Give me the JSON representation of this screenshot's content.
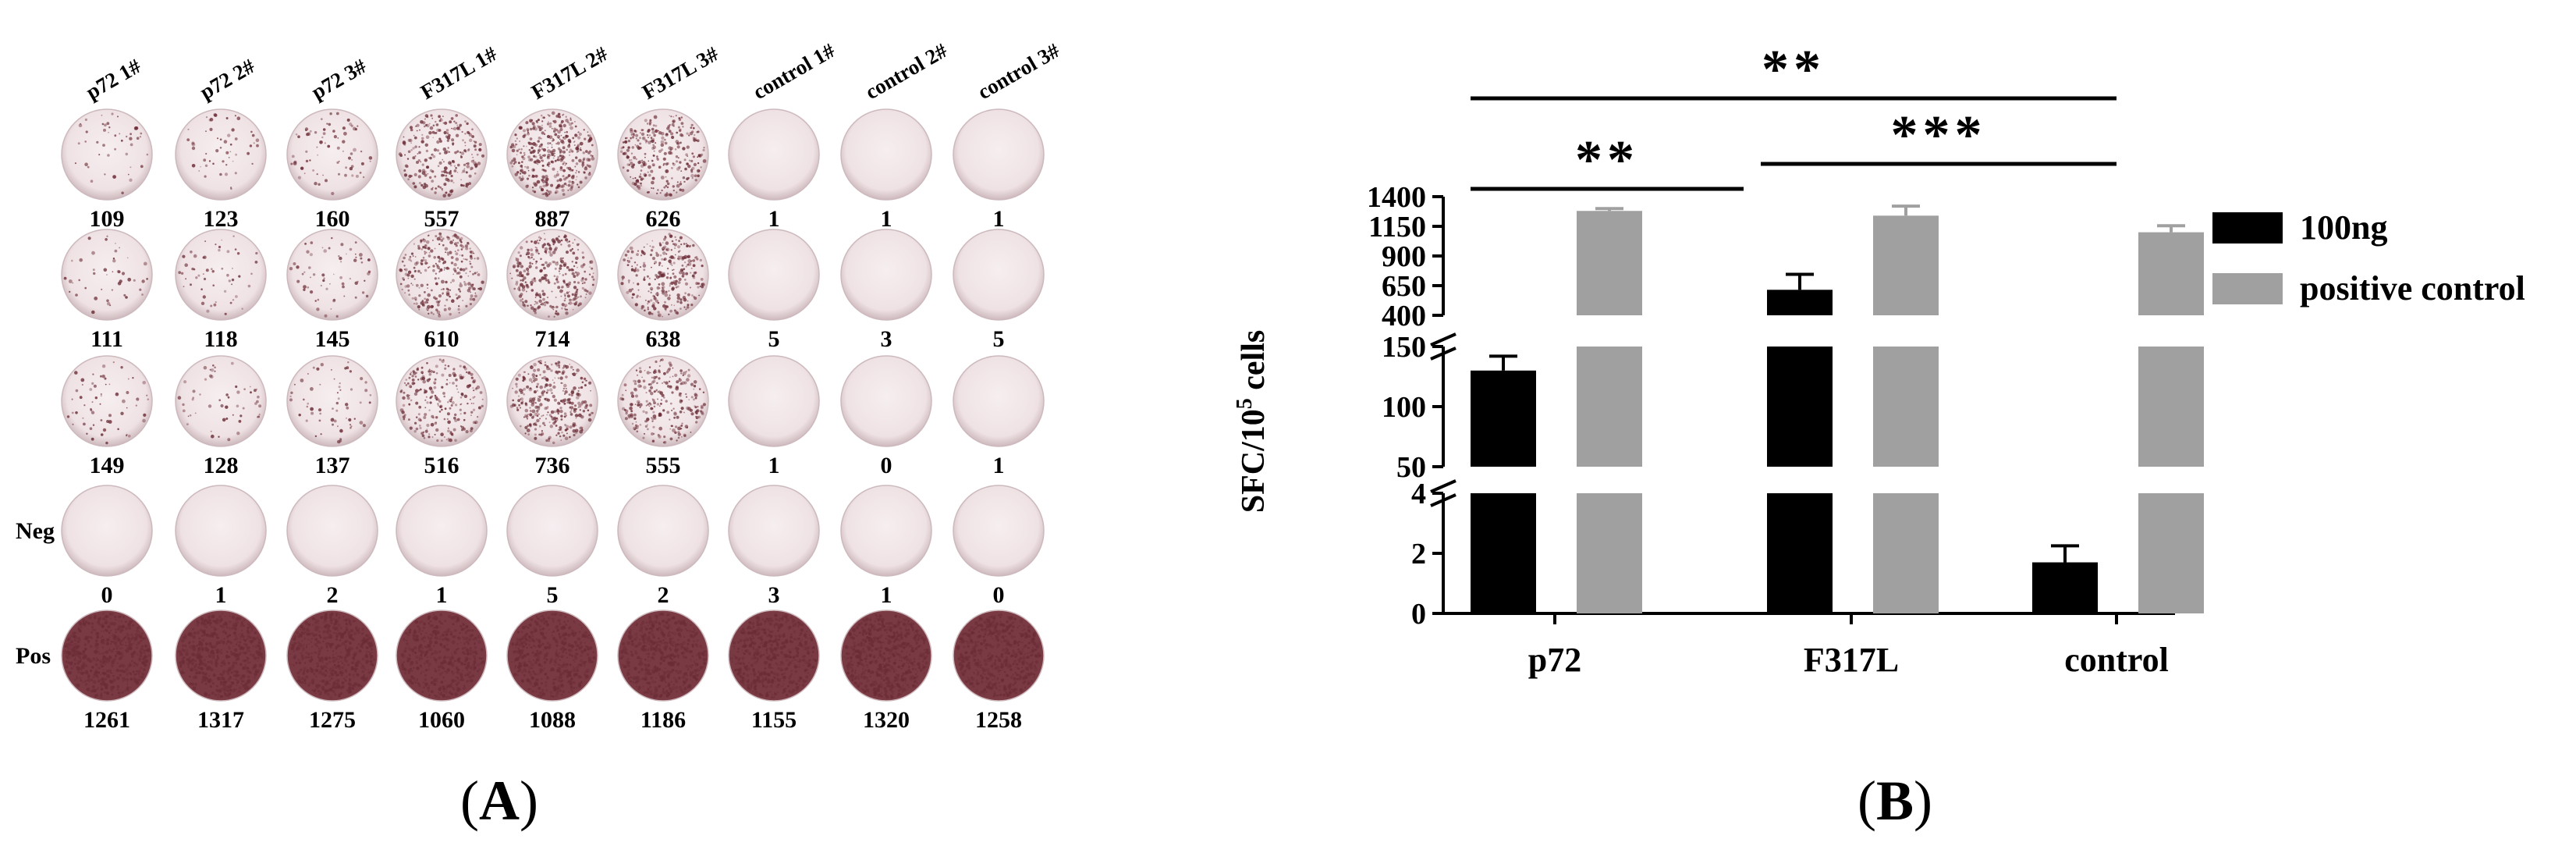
{
  "panel_a": {
    "label_open": "(",
    "label_letter": "A",
    "label_close": ")",
    "column_headers": [
      "p72 1#",
      "p72 2#",
      "p72 3#",
      "F317L 1#",
      "F317L 2#",
      "F317L 3#",
      "control 1#",
      "control 2#",
      "control 3#"
    ],
    "rows": [
      {
        "label": "",
        "counts": [
          "109",
          "123",
          "160",
          "557",
          "887",
          "626",
          "1",
          "1",
          "1"
        ],
        "density": [
          0.05,
          0.06,
          0.08,
          0.28,
          0.45,
          0.32,
          0.0,
          0.0,
          0.0
        ]
      },
      {
        "label": "",
        "counts": [
          "111",
          "118",
          "145",
          "610",
          "714",
          "638",
          "5",
          "3",
          "5"
        ],
        "density": [
          0.05,
          0.06,
          0.07,
          0.31,
          0.36,
          0.32,
          0.0,
          0.0,
          0.0
        ]
      },
      {
        "label": "",
        "counts": [
          "149",
          "128",
          "137",
          "516",
          "736",
          "555",
          "1",
          "0",
          "1"
        ],
        "density": [
          0.07,
          0.06,
          0.07,
          0.26,
          0.37,
          0.28,
          0.0,
          0.0,
          0.0
        ]
      },
      {
        "label": "Neg",
        "counts": [
          "0",
          "1",
          "2",
          "1",
          "5",
          "2",
          "3",
          "1",
          "0"
        ],
        "density": [
          0,
          0,
          0,
          0,
          0,
          0,
          0,
          0,
          0
        ]
      },
      {
        "label": "Pos",
        "counts": [
          "1261",
          "1317",
          "1275",
          "1060",
          "1088",
          "1186",
          "1155",
          "1320",
          "1258"
        ],
        "density": [
          0.64,
          0.67,
          0.65,
          0.54,
          0.55,
          0.6,
          0.59,
          0.67,
          0.64
        ]
      }
    ],
    "colors": {
      "well_fill": "#efe2e4",
      "well_edge": "#cdb9bd",
      "spot": "#6b2c36",
      "pos_fill": "#7a3a44"
    }
  },
  "panel_b": {
    "label_open": "(",
    "label_letter": "B",
    "label_close": ")",
    "chart_data": {
      "type": "bar",
      "categories": [
        "p72",
        "F317L",
        "control"
      ],
      "ylabel_main": "SFC/10",
      "ylabel_sup": "5",
      "ylabel_tail": " cells",
      "y_segments": [
        {
          "range": [
            0,
            4
          ],
          "ticks": [
            "0",
            "2",
            "4"
          ],
          "tick_values": [
            0,
            2,
            4
          ]
        },
        {
          "range": [
            50,
            150
          ],
          "ticks": [
            "50",
            "100",
            "150"
          ],
          "tick_values": [
            50,
            100,
            150
          ]
        },
        {
          "range": [
            400,
            1400
          ],
          "ticks": [
            "400",
            "650",
            "900",
            "1150",
            "1400"
          ],
          "tick_values": [
            400,
            650,
            900,
            1150,
            1400
          ]
        }
      ],
      "series": [
        {
          "name": "100ng",
          "color": "#000000",
          "values": [
            130,
            615,
            1.7
          ],
          "errors": [
            12,
            130,
            0.55
          ]
        },
        {
          "name": "positive control",
          "color": "#a0a0a0",
          "values": [
            1280,
            1240,
            1100
          ],
          "errors": [
            20,
            80,
            55
          ]
        }
      ],
      "significance": [
        {
          "label": "**",
          "from": "p72",
          "to": "control"
        },
        {
          "label": "***",
          "from": "F317L",
          "to": "control"
        },
        {
          "label": "**",
          "from": "p72",
          "to": "F317L"
        }
      ],
      "legend_position": "right"
    }
  }
}
